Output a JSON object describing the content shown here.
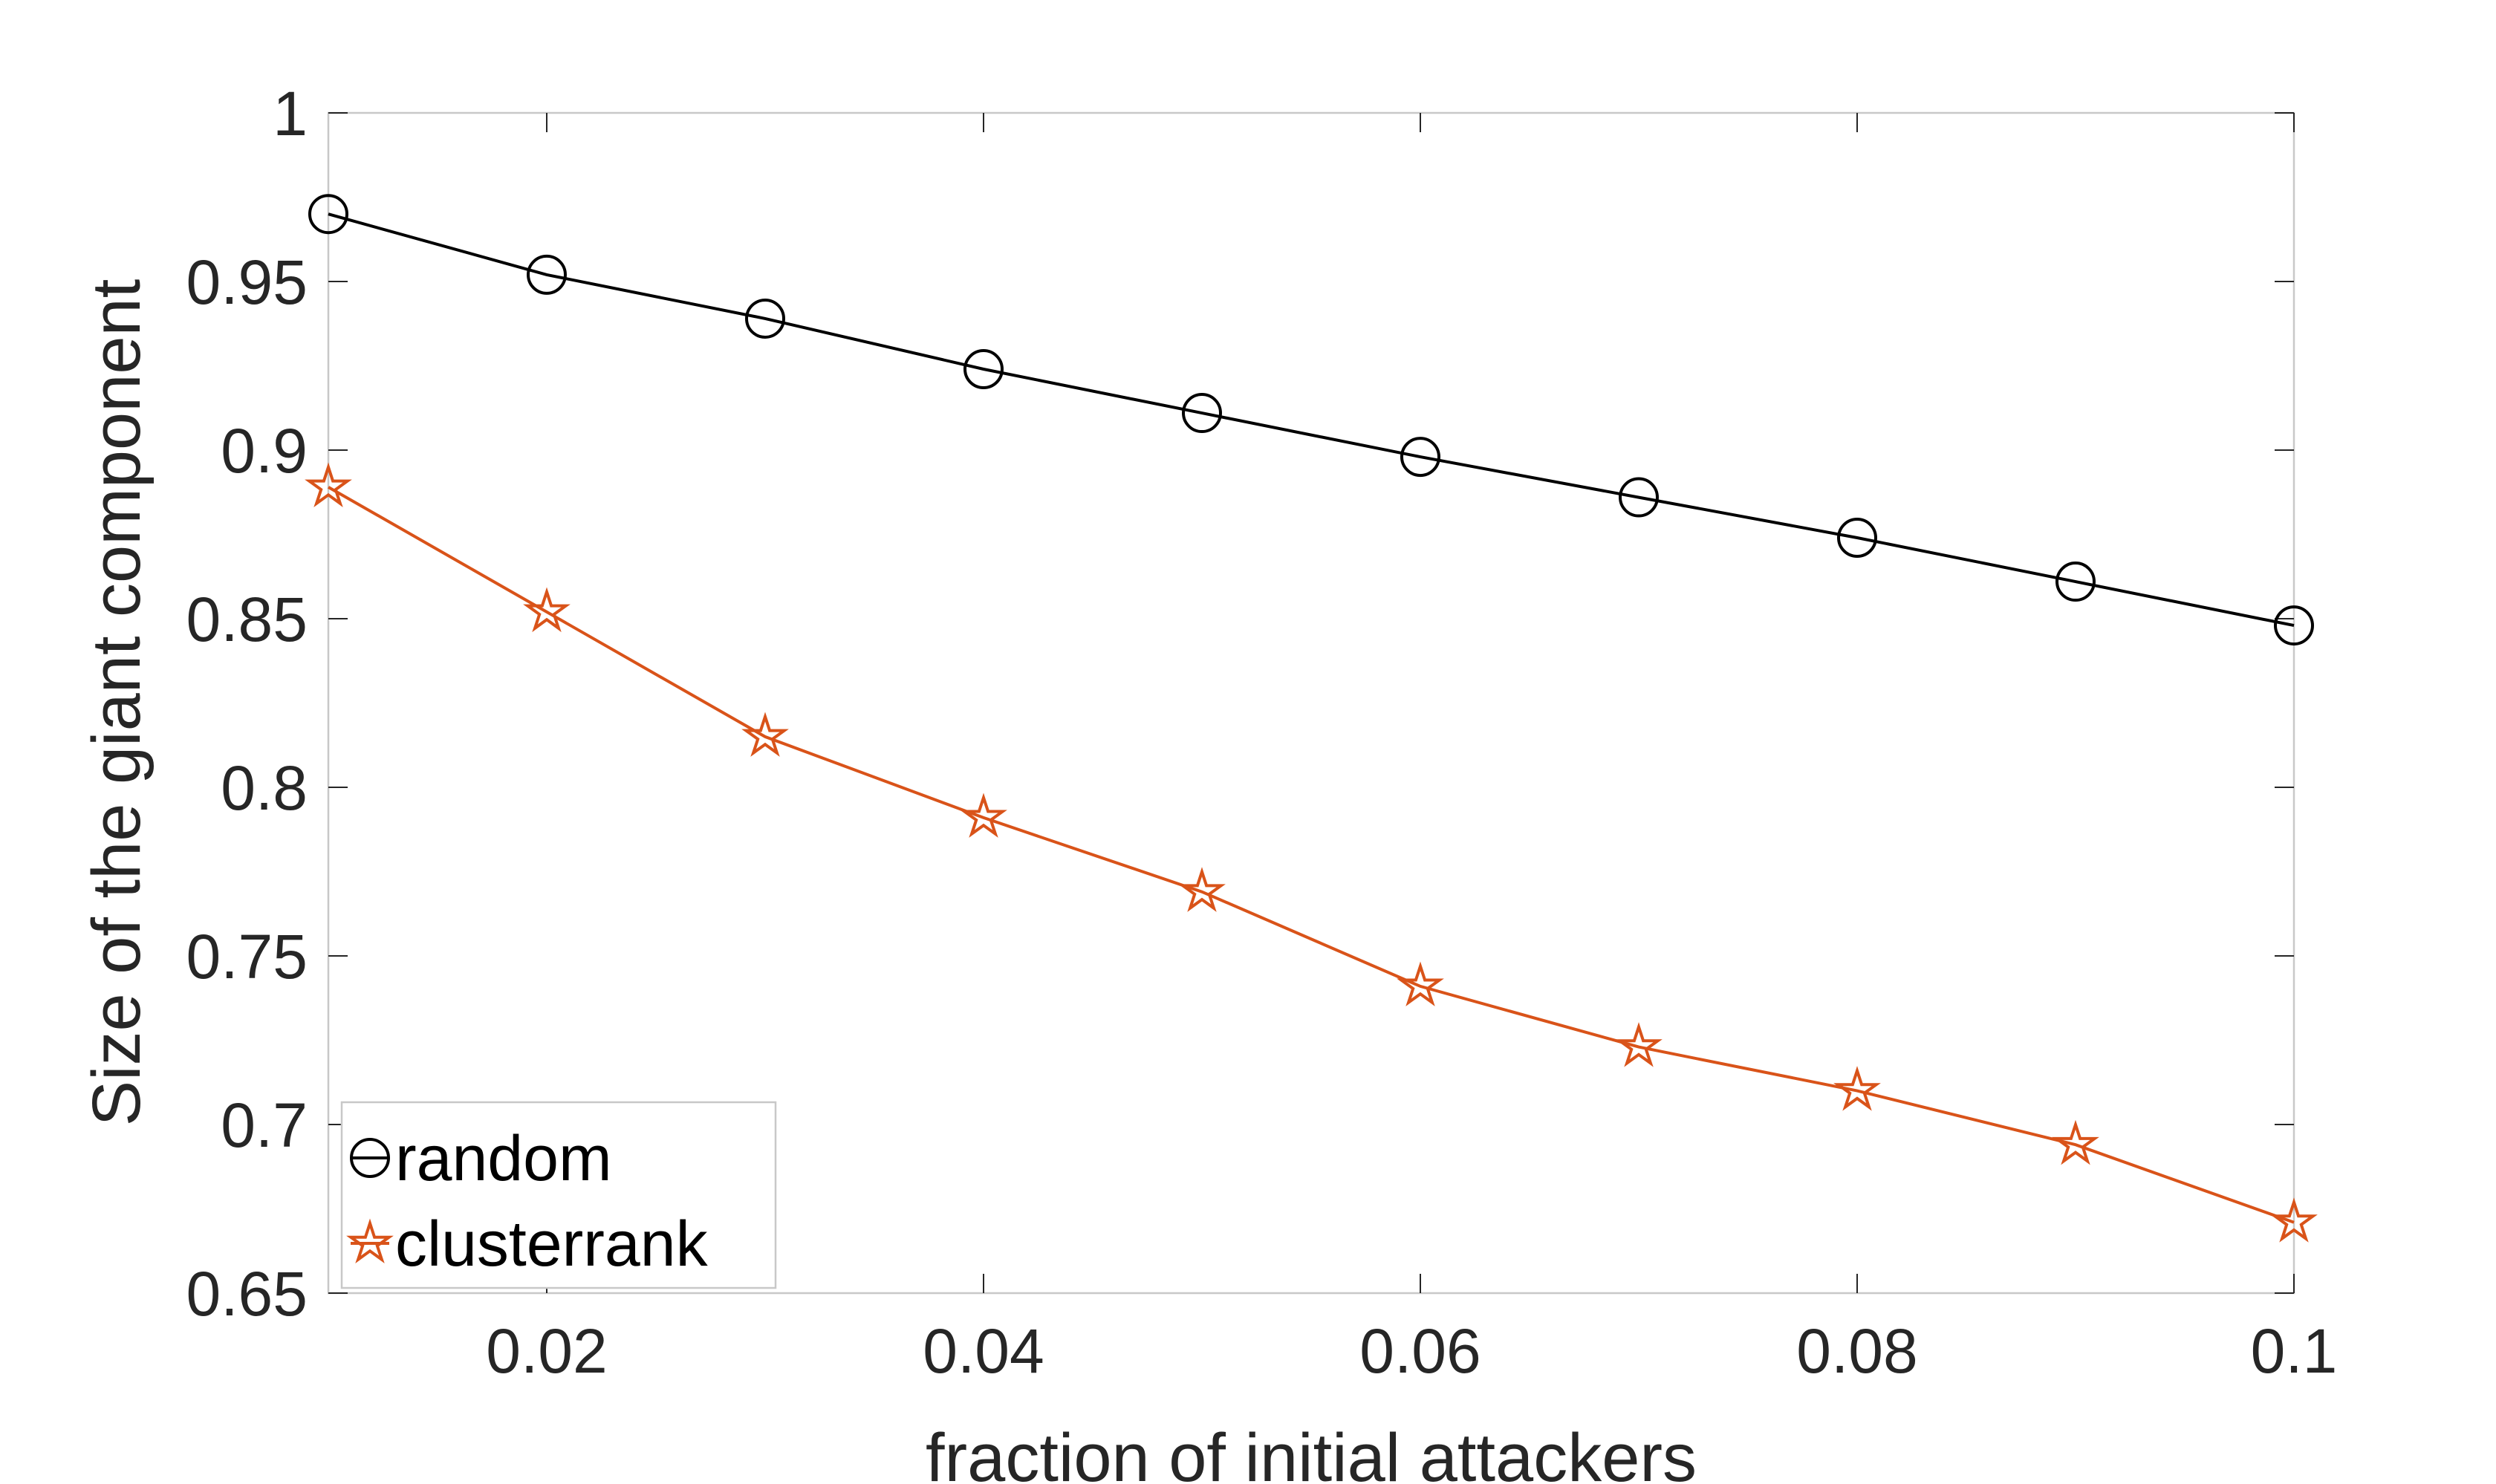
{
  "chart_data": {
    "type": "line",
    "xlabel": "fraction of initial attackers",
    "ylabel": "Size of the giant component",
    "xlim": [
      0.01,
      0.1
    ],
    "ylim": [
      0.65,
      1.0
    ],
    "xticks": [
      0.02,
      0.04,
      0.06,
      0.08,
      0.1
    ],
    "xtick_labels": [
      "0.02",
      "0.04",
      "0.06",
      "0.08",
      "0.1"
    ],
    "yticks": [
      0.65,
      0.7,
      0.75,
      0.8,
      0.85,
      0.9,
      0.95,
      1.0
    ],
    "ytick_labels": [
      "0.65",
      "0.7",
      "0.75",
      "0.8",
      "0.85",
      "0.9",
      "0.95",
      "1"
    ],
    "grid": false,
    "legend_position": "bottom-left",
    "x": [
      0.01,
      0.02,
      0.03,
      0.04,
      0.05,
      0.06,
      0.07,
      0.08,
      0.09,
      0.1
    ],
    "series": [
      {
        "name": "random",
        "color": "#000000",
        "marker": "circle",
        "values": [
          0.97,
          0.952,
          0.939,
          0.924,
          0.911,
          0.898,
          0.886,
          0.874,
          0.861,
          0.848
        ]
      },
      {
        "name": "clusterrank",
        "color": "#D95319",
        "marker": "pentagram",
        "values": [
          0.889,
          0.852,
          0.815,
          0.791,
          0.769,
          0.741,
          0.723,
          0.71,
          0.694,
          0.671
        ]
      }
    ]
  }
}
